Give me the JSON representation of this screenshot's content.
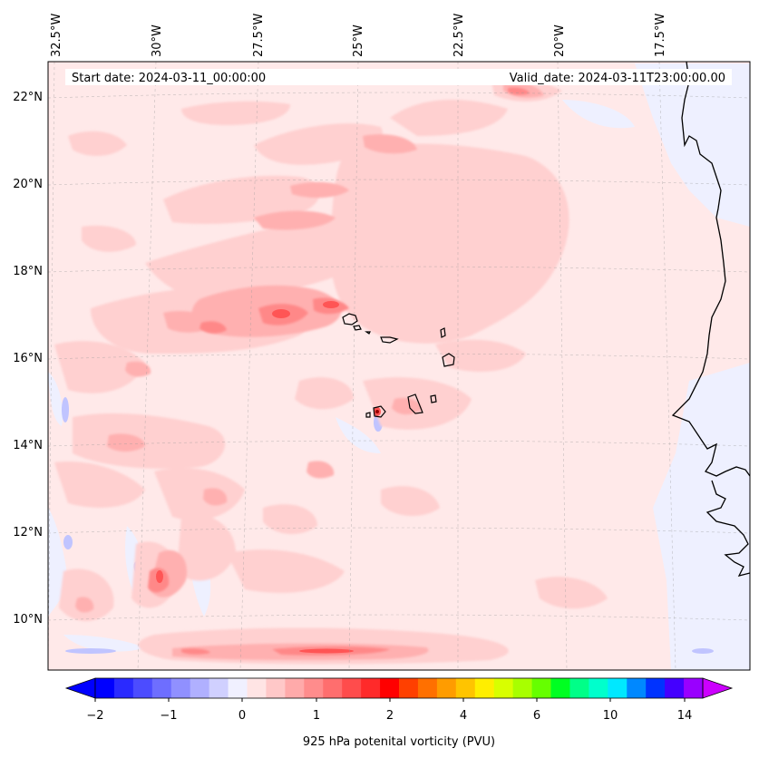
{
  "map": {
    "start_date": "Start date: 2024-03-11_00:00:00",
    "valid_date": "Valid_date: 2024-03-11T23:00:00.00",
    "lon_labels": [
      "32.5°W",
      "30°W",
      "27.5°W",
      "25°W",
      "22.5°W",
      "20°W",
      "17.5°W"
    ],
    "lat_labels": [
      "22°N",
      "20°N",
      "18°N",
      "16°N",
      "14°N",
      "12°N",
      "10°N"
    ],
    "gridlines": "dashed",
    "colors": {
      "background_field": "#ffe9e9",
      "light_pink": "#ffd0d0",
      "medium_pink": "#ffb0b0",
      "rose": "#ff8888",
      "red": "#ff5555",
      "light_blue": "#eef0ff",
      "medium_blue": "#c0c4ff",
      "coastline": "#000000"
    }
  },
  "colorbar": {
    "label": "925 hPa potenital vorticity (PVU)",
    "ticks": [
      "−2",
      "−1",
      "0",
      "1",
      "2",
      "4",
      "6",
      "10",
      "14"
    ],
    "extend": "both",
    "colors": [
      "#0000ff",
      "#2a2aff",
      "#4c4cff",
      "#6e6eff",
      "#9090ff",
      "#b0b0ff",
      "#d0d0ff",
      "#f0f0ff",
      "#ffe4e4",
      "#ffc8c8",
      "#ffaaaa",
      "#ff8c8c",
      "#ff6e6e",
      "#ff4c4c",
      "#ff2a2a",
      "#ff0000",
      "#ff4000",
      "#ff7000",
      "#ff9c00",
      "#ffc400",
      "#ffee00",
      "#d8ff00",
      "#a8ff00",
      "#66ff00",
      "#00ff22",
      "#00ff88",
      "#00ffcc",
      "#00e8ff",
      "#0088ff",
      "#0033ff",
      "#4400ff",
      "#9900ff"
    ],
    "under_color": "#0000ff",
    "over_color": "#cc00ff"
  }
}
